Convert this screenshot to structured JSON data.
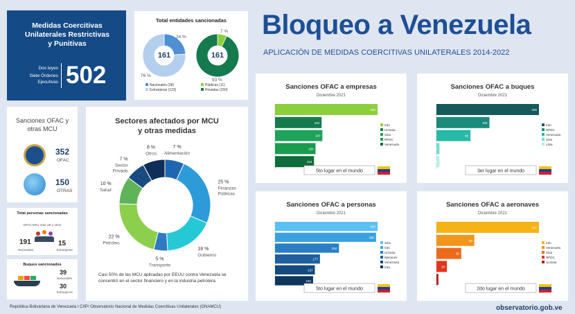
{
  "header": {
    "title": "Bloqueo a Venezuela",
    "subtitle": "APLICACIÓN DE MEDIDAS COERCITIVAS UNILATERALES 2014-2022"
  },
  "summary_box": {
    "title": "Medidas Coercitivas Unilaterales Restrictivas y Punitivas",
    "label1": "Dos leyes",
    "label2": "Siete Órdenes Ejecutivas",
    "total": "502"
  },
  "total_entities": {
    "title": "Total entidades sancionadas",
    "donut1": {
      "center": "161",
      "pct_top": "24 %",
      "pct_bottom": "76 %",
      "legend": [
        "Nacionales (38)",
        "Extranjeras (123)"
      ],
      "colors": [
        "#4f8fd4",
        "#b4cfee"
      ],
      "fractions": [
        0.24,
        0.76
      ]
    },
    "donut2": {
      "center": "161",
      "pct_top": "7 %",
      "pct_bottom": "93 %",
      "legend": [
        "Públicas (11)",
        "Privadas (150)"
      ],
      "colors": [
        "#8ccf3c",
        "#157a4e"
      ],
      "fractions": [
        0.07,
        0.93
      ]
    }
  },
  "ofac_box": {
    "title": "Sanciones OFAC y otras MCU",
    "ofac_count": "352",
    "ofac_label": "OFAC",
    "otras_count": "150",
    "otras_label": "OTRAS"
  },
  "personas_box": {
    "title": "Total personas sancionadas",
    "sub": "OFAC-EEU más UE y otros",
    "nacionales": "191",
    "nacionales_label": "Nacionales",
    "extranjeras": "15",
    "extranjeras_label": "Extranjeras"
  },
  "buques_box": {
    "title": "Buques sancionados",
    "nacionales": "39",
    "nacionales_label": "Nacionales",
    "extranjeros": "30",
    "extranjeros_label": "Extranjeros"
  },
  "sectores": {
    "title": "Sectores afectados por MCU y otras medidas",
    "note": "Casi 50% de las MCU aplicadas por EEUU contra Venezuela se concentró en el sector financiero y en la industria petrolera.",
    "slices": [
      {
        "name": "Alimentación",
        "pct": "7 %",
        "value": 7,
        "color": "#1f66b0"
      },
      {
        "name": "Finanzas Públicas",
        "pct": "25 %",
        "value": 25,
        "color": "#2e9bd9"
      },
      {
        "name": "Gobierno",
        "pct": "18 %",
        "value": 18,
        "color": "#25c9d5"
      },
      {
        "name": "Transporte",
        "pct": "5 %",
        "value": 5,
        "color": "#2f7ac2"
      },
      {
        "name": "Petróleo",
        "pct": "22 %",
        "value": 22,
        "color": "#8ccf4d"
      },
      {
        "name": "Salud",
        "pct": "10 %",
        "value": 10,
        "color": "#5fb45a"
      },
      {
        "name": "Sector Privado",
        "pct": "7 %",
        "value": 7,
        "color": "#1a4b80"
      },
      {
        "name": "Otros",
        "pct": "8 %",
        "value": 8,
        "color": "#0f2f5a"
      }
    ]
  },
  "chart_data": [
    {
      "type": "bar",
      "title": "Sanciones OFAC a empresas",
      "subtitle": "Diciembre 2021",
      "categories": [
        "Irán",
        "Ucrania",
        "Siria",
        "RPDC",
        "Venezuela"
      ],
      "values": [
        405,
        184,
        187,
        160,
        154
      ],
      "colors": [
        "#8ccf3c",
        "#157a4e",
        "#1fa35a",
        "#1a9c4e",
        "#0f6e3a"
      ],
      "footer": "5to lugar en el mundo"
    },
    {
      "type": "bar",
      "title": "Sanciones OFAC a buques",
      "subtitle": "Diciembre 2021",
      "categories": [
        "Irán",
        "RPDC",
        "Venezuela",
        "Siria",
        "Libia"
      ],
      "values": [
        205,
        106,
        68,
        6,
        6
      ],
      "colors": [
        "#145a5a",
        "#1a8a7a",
        "#26b9a8",
        "#6be0cf",
        "#b5efe6"
      ],
      "footer": "3er lugar en el mundo"
    },
    {
      "type": "bar",
      "title": "Sanciones OFAC a personas",
      "subtitle": "Diciembre 2021",
      "categories": [
        "Siria",
        "Irán",
        "Ucrania",
        "Balcanes",
        "Venezuela",
        "Iraq"
      ],
      "values": [
        404,
        398,
        252,
        177,
        157,
        150
      ],
      "colors": [
        "#5cc1f2",
        "#3aa1e0",
        "#2a7fc4",
        "#1e5f9e",
        "#154a7e",
        "#0d355e"
      ],
      "footer": "5to lugar en el mundo"
    },
    {
      "type": "bar",
      "title": "Sanciones OFAC a aeronaves",
      "subtitle": "Diciembre 2021",
      "categories": [
        "Irán",
        "Venezuela",
        "Siria",
        "RPDC",
        "Ucrania"
      ],
      "values": [
        157,
        58,
        38,
        16,
        3
      ],
      "colors": [
        "#f5b316",
        "#f0961c",
        "#ed6a1a",
        "#e0351c",
        "#b71c1c"
      ],
      "footer": "2do lugar en el mundo"
    }
  ],
  "footer": {
    "left": "República Bolivariana de Venezuela / CIIP/ Observatorio Nacional de Medidas Coercitivas Unilaterales (ONAMCU)",
    "right": "observatorio.gob.ve"
  }
}
